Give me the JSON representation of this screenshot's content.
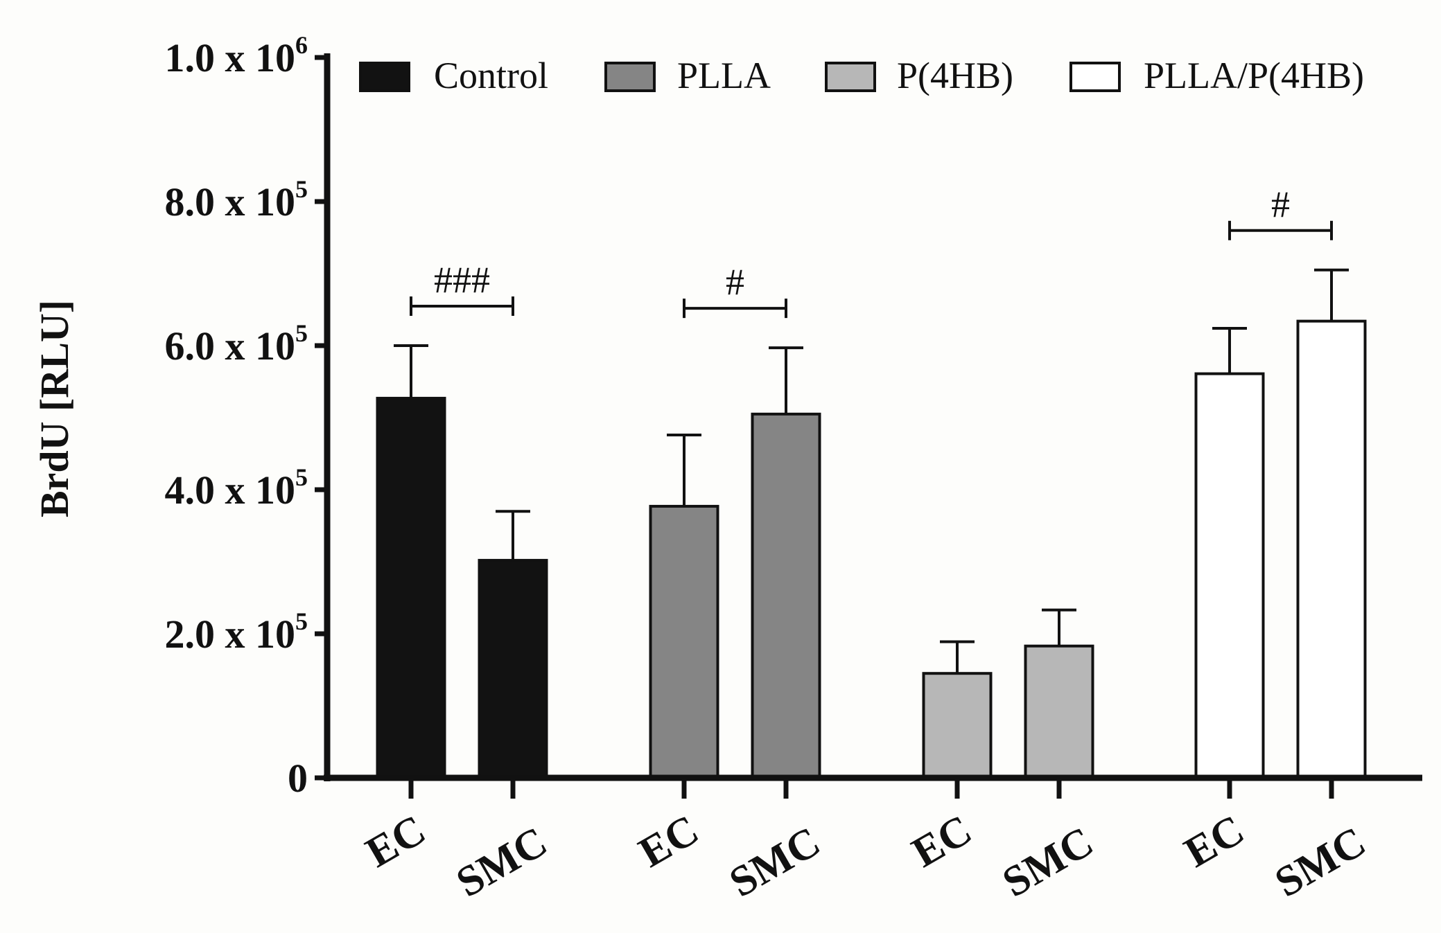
{
  "chart_data": {
    "type": "bar",
    "ylabel": "BrdU [RLU]",
    "ylim": [
      0,
      1000000
    ],
    "yticks": [
      {
        "value": 0,
        "mantissa": "0",
        "times": "",
        "base": "",
        "exponent": ""
      },
      {
        "value": 200000,
        "mantissa": "2.0",
        "times": "x",
        "base": "10",
        "exponent": "5"
      },
      {
        "value": 400000,
        "mantissa": "4.0",
        "times": "x",
        "base": "10",
        "exponent": "5"
      },
      {
        "value": 600000,
        "mantissa": "6.0",
        "times": "x",
        "base": "10",
        "exponent": "5"
      },
      {
        "value": 800000,
        "mantissa": "8.0",
        "times": "x",
        "base": "10",
        "exponent": "5"
      },
      {
        "value": 1000000,
        "mantissa": "1.0",
        "times": "x",
        "base": "10",
        "exponent": "6"
      }
    ],
    "series": [
      {
        "name": "Control",
        "color": "#121212",
        "categories": [
          "EC",
          "SMC"
        ],
        "values": [
          527000,
          302000
        ],
        "errors": [
          73000,
          68000
        ],
        "significance": "###"
      },
      {
        "name": "PLLA",
        "color": "#858585",
        "categories": [
          "EC",
          "SMC"
        ],
        "values": [
          377000,
          505000
        ],
        "errors": [
          99000,
          92000
        ],
        "significance": "#"
      },
      {
        "name": "P(4HB)",
        "color": "#b7b7b7",
        "categories": [
          "EC",
          "SMC"
        ],
        "values": [
          145000,
          183000
        ],
        "errors": [
          44000,
          50000
        ],
        "significance": ""
      },
      {
        "name": "PLLA/P(4HB)",
        "color": "#ffffff",
        "categories": [
          "EC",
          "SMC"
        ],
        "values": [
          561000,
          634000
        ],
        "errors": [
          63000,
          71000
        ],
        "significance": "#"
      }
    ],
    "legend_position": "top"
  }
}
